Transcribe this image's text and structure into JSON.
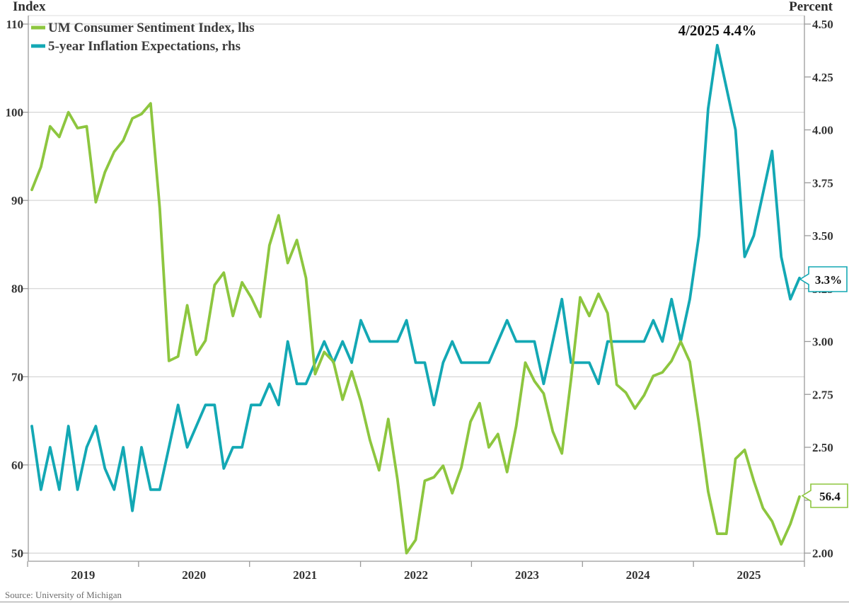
{
  "titles": {
    "left_axis_title": "Index",
    "right_axis_title": "Percent"
  },
  "legend": {
    "items": [
      {
        "label": "UM Consumer Sentiment Index, lhs",
        "color": "#8dc63f"
      },
      {
        "label": "5-year Inflation Expectations, rhs",
        "color": "#13a8b4"
      }
    ]
  },
  "annotation": {
    "text": "4/2025 4.4%"
  },
  "callouts": {
    "inflation_last_value": "3.3%",
    "sentiment_last_value": "56.4"
  },
  "source": "Source: University of Michigan",
  "colors": {
    "sentiment_line": "#8dc63f",
    "inflation_line": "#13a8b4",
    "gridline": "#cdcdcd",
    "axis": "#9a9a9a",
    "bottom_border": "#b5b5b5"
  },
  "chart_data": {
    "type": "line",
    "title": "",
    "x_monthly_start": "2019-01",
    "x_monthly_end": "2026-01",
    "x_tick_years": [
      "2019",
      "2020",
      "2021",
      "2022",
      "2023",
      "2024",
      "2025"
    ],
    "grid": "horizontal-only",
    "legend_position": "top-left",
    "left_axis": {
      "label": "Index",
      "ticks": [
        110,
        100,
        90,
        80,
        70,
        60,
        50
      ],
      "range": [
        50,
        110
      ]
    },
    "right_axis": {
      "label": "Percent",
      "ticks": [
        4.5,
        4.25,
        4.0,
        3.75,
        3.5,
        3.25,
        3.0,
        2.75,
        2.5,
        2.25,
        2.0
      ],
      "range": [
        2.0,
        4.5
      ]
    },
    "series": [
      {
        "name": "UM Consumer Sentiment Index, lhs",
        "axis": "left",
        "color": "#8dc63f",
        "values": [
          91.2,
          93.8,
          98.4,
          97.2,
          100.0,
          98.2,
          98.4,
          89.8,
          93.2,
          95.5,
          96.8,
          99.3,
          99.8,
          101.0,
          89.1,
          71.8,
          72.3,
          78.1,
          72.5,
          74.1,
          80.4,
          81.8,
          76.9,
          80.7,
          79.0,
          76.8,
          84.9,
          88.3,
          82.9,
          85.5,
          81.2,
          70.3,
          72.8,
          71.7,
          67.4,
          70.6,
          67.2,
          62.8,
          59.4,
          65.2,
          58.4,
          50.0,
          51.5,
          58.2,
          58.6,
          59.9,
          56.8,
          59.7,
          64.9,
          67.0,
          62.0,
          63.5,
          59.2,
          64.4,
          71.6,
          69.5,
          68.1,
          63.8,
          61.3,
          69.7,
          79.0,
          76.9,
          79.4,
          77.2,
          69.1,
          68.2,
          66.4,
          67.9,
          70.1,
          70.5,
          71.8,
          74.0,
          71.7,
          64.7,
          57.0,
          52.2,
          52.2,
          60.7,
          61.7,
          58.2,
          55.1,
          53.6,
          51.0,
          53.3,
          56.4
        ]
      },
      {
        "name": "5-year Inflation Expectations, rhs",
        "axis": "right",
        "color": "#13a8b4",
        "values": [
          2.6,
          2.3,
          2.5,
          2.3,
          2.6,
          2.3,
          2.5,
          2.6,
          2.4,
          2.3,
          2.5,
          2.2,
          2.5,
          2.3,
          2.3,
          2.5,
          2.7,
          2.5,
          2.6,
          2.7,
          2.7,
          2.4,
          2.5,
          2.5,
          2.7,
          2.7,
          2.8,
          2.7,
          3.0,
          2.8,
          2.8,
          2.9,
          3.0,
          2.9,
          3.0,
          2.9,
          3.1,
          3.0,
          3.0,
          3.0,
          3.0,
          3.1,
          2.9,
          2.9,
          2.7,
          2.9,
          3.0,
          2.9,
          2.9,
          2.9,
          2.9,
          3.0,
          3.1,
          3.0,
          3.0,
          3.0,
          2.8,
          3.0,
          3.2,
          2.9,
          2.9,
          2.9,
          2.8,
          3.0,
          3.0,
          3.0,
          3.0,
          3.0,
          3.1,
          3.0,
          3.2,
          3.0,
          3.2,
          3.5,
          4.1,
          4.4,
          4.2,
          4.0,
          3.4,
          3.5,
          3.7,
          3.9,
          3.4,
          3.2,
          3.3
        ]
      }
    ]
  }
}
